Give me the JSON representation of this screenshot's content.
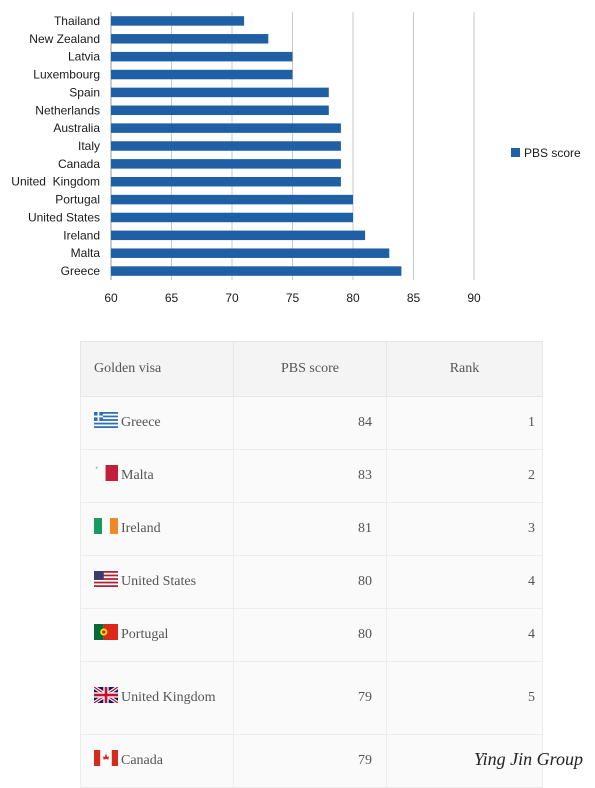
{
  "chart_data": {
    "type": "bar",
    "orientation": "horizontal",
    "categories": [
      "Thailand",
      "New Zealand",
      "Latvia",
      "Luxembourg",
      "Spain",
      "Netherlands",
      "Australia",
      "Italy",
      "Canada",
      "United  Kingdom",
      "Portugal",
      "United States",
      "Ireland",
      "Malta",
      "Greece"
    ],
    "series": [
      {
        "name": "PBS score",
        "values": [
          71,
          73,
          75,
          75,
          78,
          78,
          79,
          79,
          79,
          79,
          80,
          80,
          81,
          83,
          84
        ],
        "color": "#1f5fa6"
      }
    ],
    "xlim": [
      60,
      90
    ],
    "xticks": [
      "60",
      "65",
      "70",
      "75",
      "80",
      "85",
      "90"
    ],
    "grid": "vertical",
    "legend": "right"
  },
  "table": {
    "headers": [
      "Golden visa",
      "PBS score",
      "Rank"
    ],
    "rows": [
      {
        "country": "Greece",
        "score": "84",
        "rank": "1",
        "flag": "greece-flag"
      },
      {
        "country": "Malta",
        "score": "83",
        "rank": "2",
        "flag": "malta-flag"
      },
      {
        "country": "Ireland",
        "score": "81",
        "rank": "3",
        "flag": "ireland-flag"
      },
      {
        "country": "United States",
        "score": "80",
        "rank": "4",
        "flag": "usa-flag"
      },
      {
        "country": "Portugal",
        "score": "80",
        "rank": "4",
        "flag": "portugal-flag"
      },
      {
        "country": "United Kingdom",
        "score": "79",
        "rank": "5",
        "flag": "uk-flag"
      },
      {
        "country": "Canada",
        "score": "79",
        "rank": "",
        "flag": "canada-flag"
      }
    ]
  },
  "watermark": "Ying Jin Group"
}
